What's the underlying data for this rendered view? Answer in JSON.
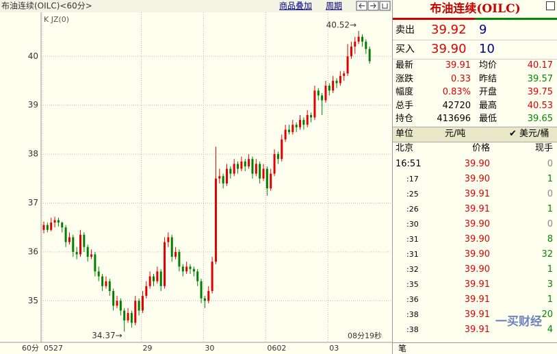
{
  "toolbar": {
    "title": "布油连续(OILC)<60分>",
    "overlay": "商品叠加",
    "period": "周期"
  },
  "chart_data": {
    "type": "candlestick",
    "indicator": "K  JZ(0)",
    "x_unit": "60分",
    "timer": "08分19秒",
    "ylim": [
      34.15,
      40.9
    ],
    "yticks": [
      35,
      36,
      37,
      38,
      39,
      40
    ],
    "grid": true,
    "up_color": "#e00000",
    "down_color": "#008000",
    "annotations": [
      {
        "text": "40.52→",
        "at": "high"
      },
      {
        "text": "34.37→",
        "at": "low"
      }
    ],
    "categories": [
      "0527",
      null,
      null,
      null,
      null,
      null,
      null,
      null,
      null,
      null,
      null,
      null,
      null,
      null,
      null,
      null,
      null,
      null,
      null,
      null,
      null,
      null,
      null,
      null,
      null,
      null,
      null,
      "29",
      null,
      null,
      null,
      null,
      null,
      null,
      null,
      null,
      null,
      null,
      null,
      null,
      null,
      null,
      null,
      null,
      "30",
      null,
      null,
      null,
      null,
      null,
      null,
      null,
      null,
      null,
      null,
      null,
      null,
      null,
      null,
      null,
      null,
      "0602",
      null,
      null,
      null,
      null,
      null,
      null,
      null,
      null,
      null,
      null,
      null,
      null,
      null,
      null,
      null,
      null,
      "03",
      null,
      null,
      null,
      null,
      null,
      null,
      null,
      null,
      null,
      null,
      null
    ],
    "candles": [
      [
        36.45,
        36.62,
        36.38,
        36.55
      ],
      [
        36.55,
        36.6,
        36.4,
        36.45
      ],
      [
        36.45,
        36.7,
        36.42,
        36.6
      ],
      [
        36.6,
        36.72,
        36.5,
        36.65
      ],
      [
        36.65,
        36.7,
        36.52,
        36.6
      ],
      [
        36.6,
        36.62,
        36.4,
        36.5
      ],
      [
        36.5,
        36.55,
        36.1,
        36.2
      ],
      [
        36.2,
        36.4,
        36.15,
        36.3
      ],
      [
        36.3,
        36.35,
        35.9,
        36.0
      ],
      [
        36.0,
        36.1,
        35.85,
        35.95
      ],
      [
        35.95,
        36.45,
        35.9,
        36.35
      ],
      [
        36.35,
        36.4,
        36.0,
        36.1
      ],
      [
        36.1,
        36.15,
        35.8,
        35.9
      ],
      [
        35.9,
        36.05,
        35.85,
        35.95
      ],
      [
        35.95,
        36.0,
        35.5,
        35.6
      ],
      [
        35.6,
        35.7,
        35.4,
        35.5
      ],
      [
        35.5,
        35.55,
        35.2,
        35.3
      ],
      [
        35.3,
        35.5,
        35.25,
        35.4
      ],
      [
        35.4,
        35.45,
        35.1,
        35.2
      ],
      [
        35.2,
        35.25,
        34.8,
        34.9
      ],
      [
        34.9,
        35.1,
        34.85,
        35.0
      ],
      [
        35.0,
        35.05,
        34.7,
        34.8
      ],
      [
        34.8,
        34.85,
        34.37,
        34.6
      ],
      [
        34.6,
        34.85,
        34.55,
        34.75
      ],
      [
        34.75,
        34.8,
        34.45,
        34.55
      ],
      [
        34.55,
        35.1,
        34.5,
        35.0
      ],
      [
        35.0,
        35.05,
        34.7,
        34.8
      ],
      [
        34.8,
        35.2,
        34.75,
        35.1
      ],
      [
        35.1,
        35.4,
        35.05,
        35.3
      ],
      [
        35.3,
        35.6,
        35.25,
        35.5
      ],
      [
        35.5,
        35.55,
        35.3,
        35.4
      ],
      [
        35.4,
        35.7,
        35.35,
        35.6
      ],
      [
        35.6,
        35.65,
        35.2,
        35.3
      ],
      [
        35.3,
        36.3,
        35.25,
        36.2
      ],
      [
        36.2,
        36.4,
        36.1,
        36.3
      ],
      [
        36.3,
        36.35,
        35.8,
        35.9
      ],
      [
        35.9,
        36.1,
        35.85,
        36.0
      ],
      [
        36.0,
        36.05,
        35.6,
        35.7
      ],
      [
        35.7,
        35.75,
        35.5,
        35.6
      ],
      [
        35.6,
        35.8,
        35.55,
        35.7
      ],
      [
        35.7,
        35.75,
        35.55,
        35.65
      ],
      [
        35.65,
        35.7,
        35.5,
        35.6
      ],
      [
        35.6,
        35.65,
        35.3,
        35.4
      ],
      [
        35.4,
        35.45,
        34.95,
        35.05
      ],
      [
        35.05,
        35.1,
        34.85,
        35.0
      ],
      [
        35.0,
        35.3,
        34.95,
        35.2
      ],
      [
        35.2,
        35.9,
        35.15,
        35.8
      ],
      [
        35.8,
        38.15,
        35.75,
        37.5
      ],
      [
        37.5,
        37.7,
        37.4,
        37.55
      ],
      [
        37.55,
        37.6,
        37.3,
        37.4
      ],
      [
        37.4,
        37.8,
        37.35,
        37.7
      ],
      [
        37.7,
        37.75,
        37.5,
        37.6
      ],
      [
        37.6,
        37.9,
        37.55,
        37.8
      ],
      [
        37.8,
        37.85,
        37.6,
        37.7
      ],
      [
        37.7,
        37.95,
        37.65,
        37.85
      ],
      [
        37.85,
        37.9,
        37.65,
        37.75
      ],
      [
        37.75,
        38.0,
        37.7,
        37.9
      ],
      [
        37.9,
        37.95,
        37.5,
        37.6
      ],
      [
        37.6,
        37.9,
        37.55,
        37.8
      ],
      [
        37.8,
        37.85,
        37.4,
        37.5
      ],
      [
        37.5,
        37.8,
        37.45,
        37.7
      ],
      [
        37.7,
        37.75,
        37.15,
        37.3
      ],
      [
        37.3,
        37.7,
        37.25,
        37.6
      ],
      [
        37.6,
        38.1,
        37.55,
        38.0
      ],
      [
        38.0,
        38.05,
        37.8,
        37.9
      ],
      [
        37.9,
        38.4,
        37.85,
        38.3
      ],
      [
        38.3,
        38.6,
        38.25,
        38.5
      ],
      [
        38.5,
        38.6,
        38.4,
        38.45
      ],
      [
        38.45,
        38.7,
        38.4,
        38.6
      ],
      [
        38.6,
        38.65,
        38.45,
        38.55
      ],
      [
        38.55,
        38.8,
        38.5,
        38.7
      ],
      [
        38.7,
        38.75,
        38.5,
        38.6
      ],
      [
        38.6,
        38.9,
        38.55,
        38.8
      ],
      [
        38.8,
        38.85,
        38.65,
        38.75
      ],
      [
        38.75,
        39.4,
        38.7,
        39.3
      ],
      [
        39.3,
        39.35,
        39.1,
        39.2
      ],
      [
        39.2,
        39.25,
        38.8,
        39.1
      ],
      [
        39.1,
        39.5,
        39.05,
        39.4
      ],
      [
        39.4,
        39.45,
        39.2,
        39.3
      ],
      [
        39.3,
        39.6,
        39.25,
        39.5
      ],
      [
        39.5,
        39.55,
        39.35,
        39.45
      ],
      [
        39.45,
        39.7,
        39.4,
        39.6
      ],
      [
        39.6,
        39.7,
        39.5,
        39.65
      ],
      [
        39.65,
        40.25,
        39.6,
        40.0
      ],
      [
        40.0,
        40.3,
        39.95,
        40.2
      ],
      [
        40.2,
        40.4,
        40.05,
        40.3
      ],
      [
        40.3,
        40.52,
        40.25,
        40.4
      ],
      [
        40.4,
        40.45,
        40.2,
        40.3
      ],
      [
        40.3,
        40.35,
        40.05,
        40.15
      ],
      [
        40.15,
        40.2,
        39.85,
        39.9
      ]
    ]
  },
  "quote": {
    "title": "布油连续(OILC)",
    "book": [
      [
        "卖出",
        "39.92",
        "9"
      ],
      [
        "买入",
        "39.90",
        "10"
      ]
    ],
    "stats": [
      [
        "最新",
        "39.91",
        "均价",
        "40.17"
      ],
      [
        "涨跌",
        "0.33",
        "昨结",
        "39.57"
      ],
      [
        "幅度",
        "0.83%",
        "开盘",
        "39.75"
      ],
      [
        "总手",
        "42720",
        "最高",
        "40.53"
      ],
      [
        "持仓",
        "413696",
        "最低",
        "39.65"
      ]
    ],
    "unit": [
      "单位",
      "元/吨",
      "✔ 美元/桶"
    ],
    "header": [
      "北京",
      "价格",
      "现手"
    ],
    "ticks": [
      [
        "16:51",
        "39.90",
        "0"
      ],
      [
        ":17",
        "39.90",
        "1"
      ],
      [
        ":25",
        "39.91",
        "0"
      ],
      [
        ":26",
        "39.91",
        "1"
      ],
      [
        ":30",
        "39.90",
        "0"
      ],
      [
        ":31",
        "39.90",
        "8"
      ],
      [
        ":31",
        "39.90",
        "32"
      ],
      [
        ":32",
        "39.90",
        "1"
      ],
      [
        ":35",
        "39.91",
        "3"
      ],
      [
        ":36",
        "39.91",
        "1"
      ],
      [
        ":38",
        "39.91",
        "20"
      ],
      [
        ":38",
        "39.91",
        "4"
      ]
    ],
    "footer": "笔",
    "watermark": "一买财经"
  }
}
